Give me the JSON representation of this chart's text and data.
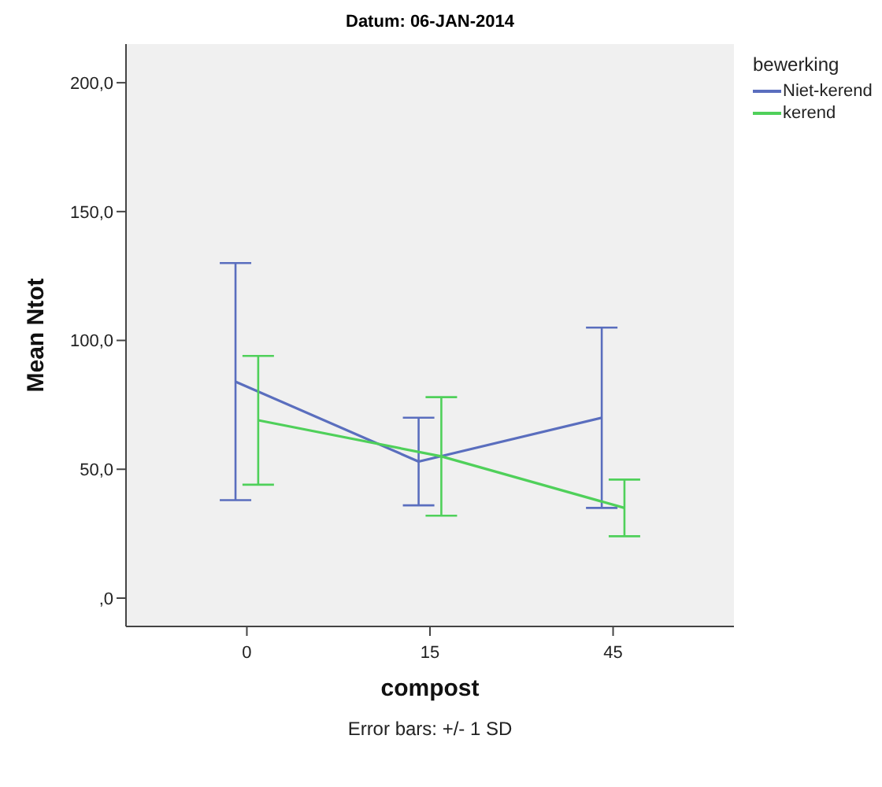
{
  "chart_data": {
    "type": "line",
    "title": "Datum: 06-JAN-2014",
    "xlabel": "compost",
    "ylabel": "Mean Ntot",
    "legend_title": "bewerking",
    "annotations": [
      "Error bars: +/- 1 SD"
    ],
    "categories": [
      "0",
      "15",
      "45"
    ],
    "series": [
      {
        "name": "Niet-kerend",
        "color": "#5a6ebe",
        "values": [
          84,
          53,
          70
        ],
        "errors": [
          46,
          17,
          35
        ]
      },
      {
        "name": "kerend",
        "color": "#4fd05a",
        "values": [
          69,
          55,
          35
        ],
        "errors": [
          25,
          23,
          11
        ]
      }
    ],
    "ylim": [
      -11,
      215
    ],
    "yticks": [
      {
        "value": 0,
        "label": ",0"
      },
      {
        "value": 50,
        "label": "50,0"
      },
      {
        "value": 100,
        "label": "100,0"
      },
      {
        "value": 150,
        "label": "150,0"
      },
      {
        "value": 200,
        "label": "200,0"
      }
    ],
    "grid": false,
    "legend": "right",
    "marker": "none",
    "line_style": "solid"
  }
}
